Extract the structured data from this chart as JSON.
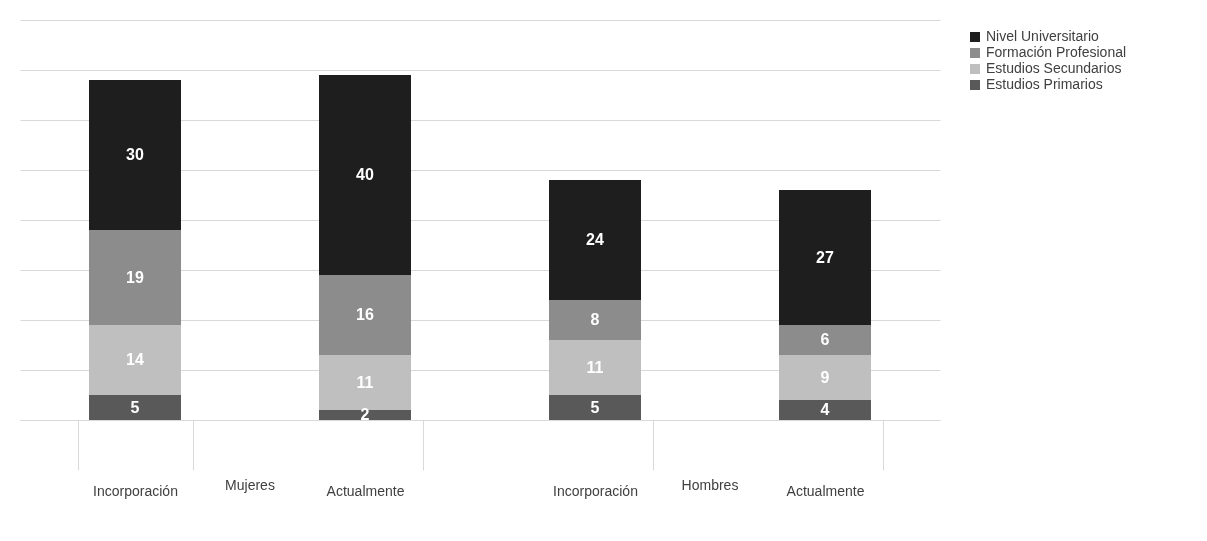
{
  "chart_data": {
    "type": "bar",
    "stacked": true,
    "data_labels": true,
    "categories": [
      "Incorporación",
      "Actualmente",
      "Incorporación",
      "Actualmente"
    ],
    "annotations": [
      "Mujeres",
      "Hombres"
    ],
    "series": [
      {
        "name": "Estudios Primarios",
        "color": "#595959",
        "values": [
          5,
          2,
          5,
          4
        ]
      },
      {
        "name": "Estudios Secundarios",
        "color": "#bfbfbf",
        "values": [
          14,
          11,
          11,
          9
        ]
      },
      {
        "name": "Formación Profesional",
        "color": "#8c8c8c",
        "values": [
          19,
          16,
          8,
          6
        ]
      },
      {
        "name": "Nivel Universitario",
        "color": "#1e1e1e",
        "values": [
          30,
          40,
          24,
          27
        ]
      }
    ],
    "ylim": [
      0,
      80
    ],
    "yticks": [
      {
        "value": 0,
        "label": null
      },
      {
        "value": 10,
        "label": null
      },
      {
        "value": 20,
        "label": null
      },
      {
        "value": 30,
        "label": null
      },
      {
        "value": 40,
        "label": null
      },
      {
        "value": 50,
        "label": null
      },
      {
        "value": 60,
        "label": null
      },
      {
        "value": 70,
        "label": null
      },
      {
        "value": 80,
        "label": null
      }
    ],
    "tick_labels": "x",
    "grid": "y",
    "legend": "right"
  }
}
